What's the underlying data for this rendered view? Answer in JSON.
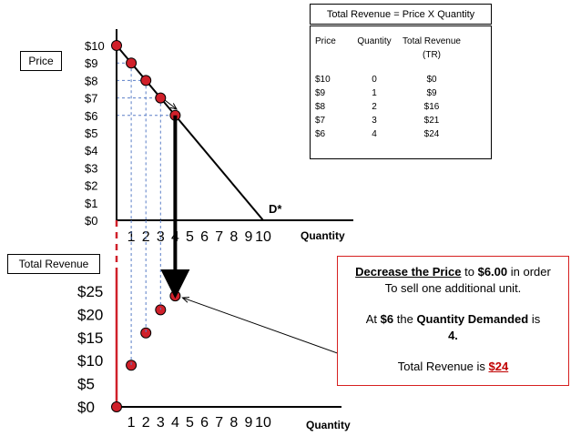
{
  "formula_box": {
    "text": "Total Revenue = Price X Quantity"
  },
  "price_label": "Price",
  "total_revenue_label": "Total Revenue",
  "table": {
    "headers": [
      "Price",
      "Quantity",
      "Total Revenue",
      "(TR)"
    ],
    "rows": [
      [
        "$10",
        "0",
        "$0"
      ],
      [
        "$9",
        "1",
        "$9"
      ],
      [
        "$8",
        "2",
        "$16"
      ],
      [
        "$7",
        "3",
        "$21"
      ],
      [
        "$6",
        "4",
        "$24"
      ]
    ]
  },
  "callout": {
    "line1_a": "Decrease the Price",
    "line1_b": " to ",
    "line1_c": "$6.00",
    "line1_d": " in order",
    "line2": "To sell one additional  unit.",
    "line3_a": "At ",
    "line3_b": "$6",
    "line3_c": " the ",
    "line3_d": "Quantity Demanded",
    "line3_e": " is",
    "line4": "4.",
    "line5_a": "Total Revenue is ",
    "line5_b": "$24"
  },
  "chart_data": [
    {
      "type": "line",
      "title": "",
      "xlabel": "Quantity",
      "ylabel": "Price",
      "x_ticks": [
        "1",
        "2",
        "3",
        "4",
        "5",
        "6",
        "7",
        "8",
        "9",
        "10"
      ],
      "y_ticks": [
        "$0",
        "$1",
        "$2",
        "$3",
        "$4",
        "$5",
        "$6",
        "$7",
        "$8",
        "$9",
        "$10"
      ],
      "xlim": [
        0,
        10
      ],
      "ylim": [
        0,
        10
      ],
      "curve_label": "D*",
      "demand_line": [
        [
          0,
          10
        ],
        [
          10,
          0
        ]
      ],
      "points": [
        {
          "x": 0,
          "y": 10
        },
        {
          "x": 1,
          "y": 9
        },
        {
          "x": 2,
          "y": 8
        },
        {
          "x": 3,
          "y": 7
        },
        {
          "x": 4,
          "y": 6
        }
      ],
      "marker_color": "#d0202a"
    },
    {
      "type": "scatter",
      "title": "",
      "xlabel": "Quantity",
      "ylabel": "Total Revenue",
      "x_ticks": [
        "1",
        "2",
        "3",
        "4",
        "5",
        "6",
        "7",
        "8",
        "9",
        "10"
      ],
      "y_ticks": [
        "$0",
        "$5",
        "$10",
        "$15",
        "$20",
        "$25"
      ],
      "xlim": [
        0,
        10
      ],
      "ylim": [
        0,
        25
      ],
      "points": [
        {
          "x": 0,
          "y": 0
        },
        {
          "x": 1,
          "y": 9
        },
        {
          "x": 2,
          "y": 16
        },
        {
          "x": 3,
          "y": 21
        },
        {
          "x": 4,
          "y": 24
        }
      ],
      "marker_color": "#d0202a"
    }
  ]
}
